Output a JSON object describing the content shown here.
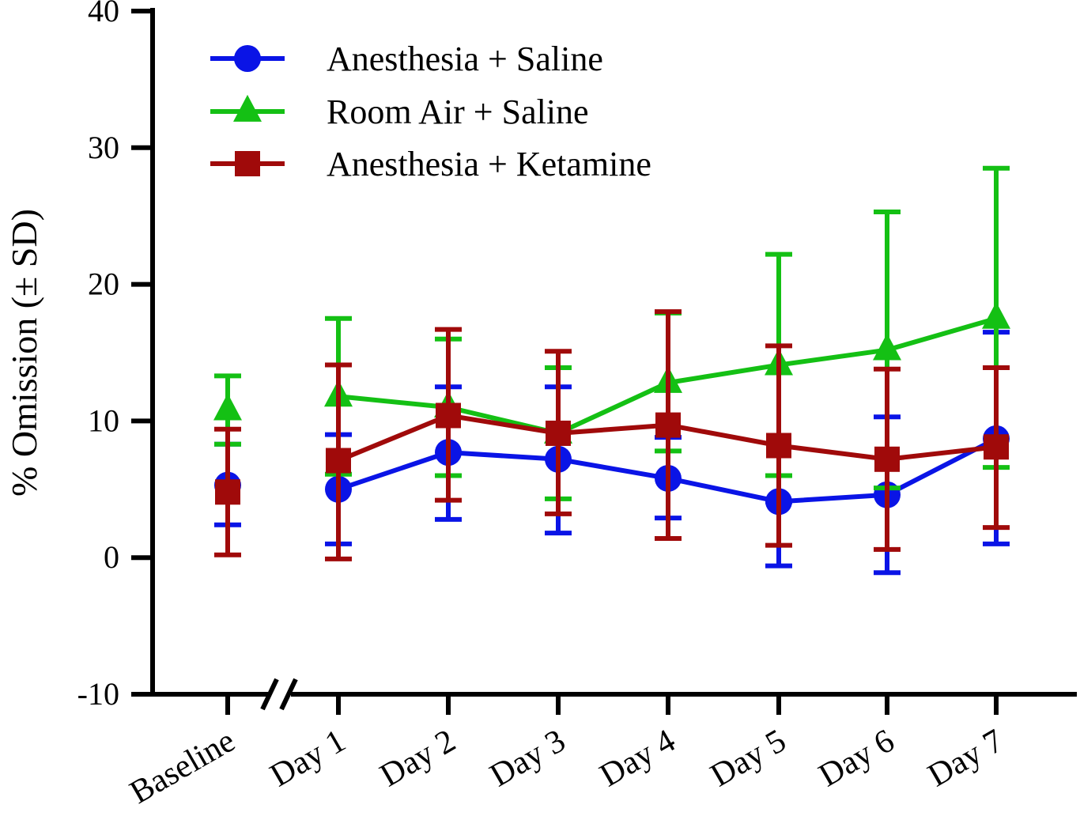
{
  "chart_data": {
    "type": "line",
    "title": "",
    "xlabel": "",
    "ylabel": "% Omission (± SD)",
    "ylim": [
      -10,
      40
    ],
    "yticks": [
      -10,
      0,
      10,
      20,
      30,
      40
    ],
    "ytick_labels": [
      "-10",
      "0",
      "10",
      "20",
      "30",
      "40"
    ],
    "categories": [
      "Baseline",
      "Day 1",
      "Day 2",
      "Day 3",
      "Day 4",
      "Day 5",
      "Day 6",
      "Day 7"
    ],
    "axis_break_after": "Baseline",
    "legend_position": "top-left",
    "series": [
      {
        "name": "Anesthesia + Saline",
        "color": "#0a14e6",
        "marker": "circle",
        "values": [
          5.3,
          5.0,
          7.7,
          7.2,
          5.8,
          4.1,
          4.6,
          8.7
        ],
        "sd_upper": [
          8.3,
          9.0,
          12.5,
          12.5,
          8.8,
          4.1,
          10.3,
          16.5
        ],
        "sd_lower": [
          2.4,
          1.0,
          2.8,
          1.8,
          2.9,
          -0.6,
          -1.1,
          1.0
        ]
      },
      {
        "name": "Room Air + Saline",
        "color": "#14c014",
        "marker": "triangle",
        "values": [
          10.8,
          11.8,
          11.0,
          9.1,
          12.8,
          14.1,
          15.2,
          17.5
        ],
        "sd_upper": [
          13.3,
          17.5,
          16.0,
          13.9,
          17.9,
          22.2,
          25.3,
          28.5
        ],
        "sd_lower": [
          8.3,
          6.1,
          6.0,
          4.3,
          7.8,
          6.0,
          5.1,
          6.6
        ]
      },
      {
        "name": "Anesthesia + Ketamine",
        "color": "#a00a0a",
        "marker": "square",
        "values": [
          4.8,
          7.1,
          10.4,
          9.1,
          9.7,
          8.2,
          7.2,
          8.1
        ],
        "sd_upper": [
          9.4,
          14.1,
          16.7,
          15.1,
          18.0,
          15.5,
          13.8,
          13.9
        ],
        "sd_lower": [
          0.2,
          -0.1,
          4.2,
          3.2,
          1.4,
          0.9,
          0.6,
          2.2
        ]
      }
    ]
  }
}
